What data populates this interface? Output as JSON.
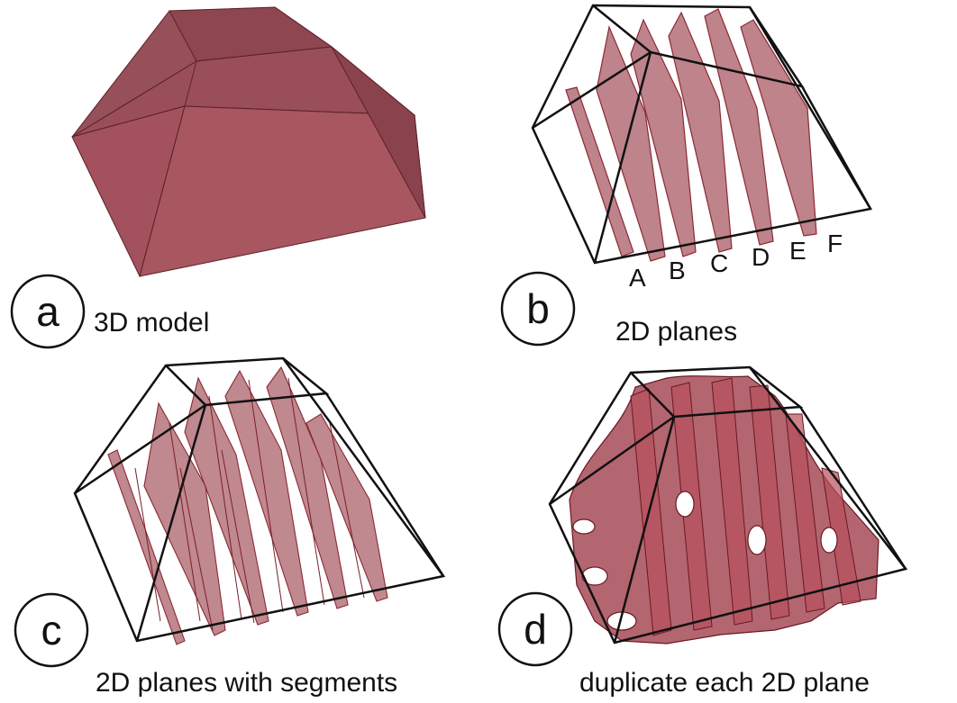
{
  "panels": [
    {
      "id": "a",
      "letter": "a",
      "caption": "3D model"
    },
    {
      "id": "b",
      "letter": "b",
      "caption": "2D planes",
      "plane_labels": [
        "A",
        "B",
        "C",
        "D",
        "E",
        "F"
      ]
    },
    {
      "id": "c",
      "letter": "c",
      "caption": "2D planes with segments"
    },
    {
      "id": "d",
      "letter": "d",
      "caption": "duplicate each 2D plane"
    }
  ],
  "colors": {
    "solid_fill": "#a0525f",
    "plane_fill": "#a85a64",
    "plane_edge": "#8a2a35",
    "frame": "#111111"
  }
}
